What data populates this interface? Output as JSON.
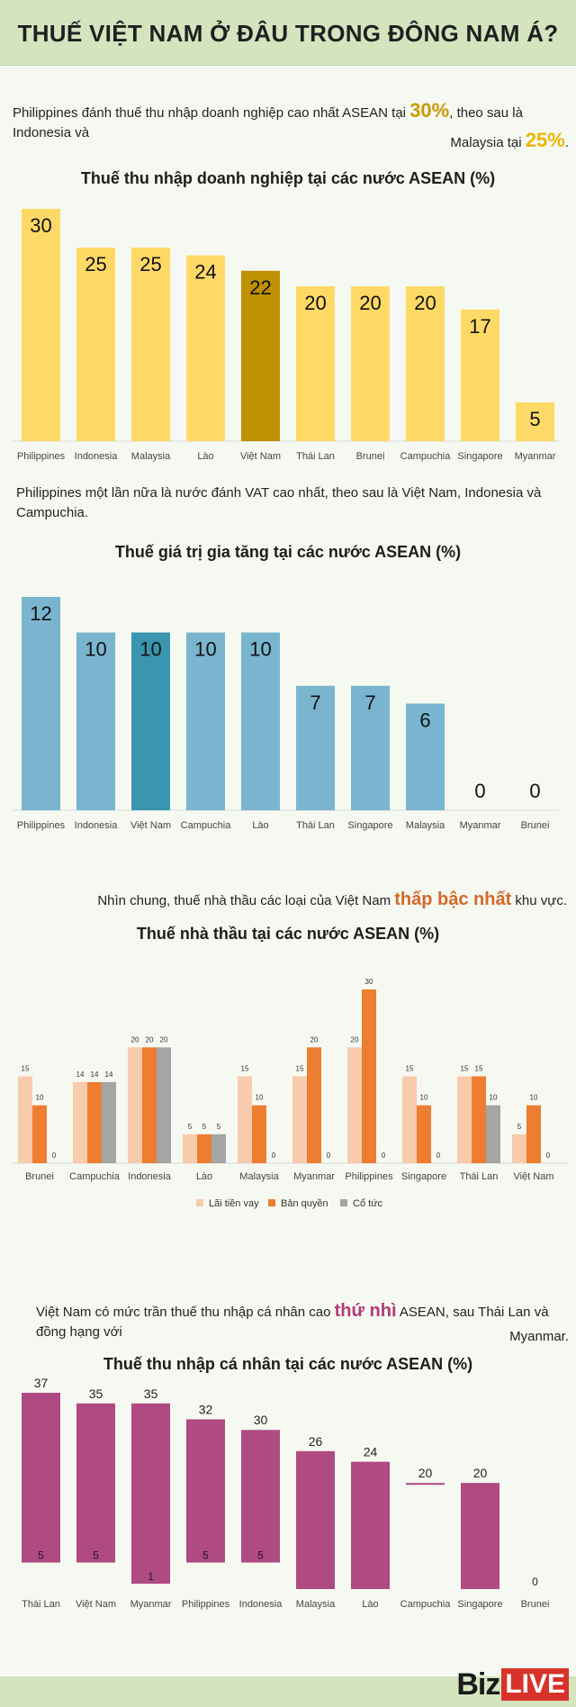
{
  "header": {
    "title": "THUẾ VIỆT NAM Ở ĐÂU TRONG ĐÔNG NAM Á?"
  },
  "intro1": {
    "line1_text": "Philippines đánh thuế thu nhập doanh nghiệp cao nhất ASEAN tại ",
    "line1_highlight": "30%",
    "line1_rest": ", theo sau là Indonesia và",
    "line2_text": "Malaysia tại ",
    "line2_highlight": "25%",
    "line2_rest": ".",
    "highlight_color": "#c99a00"
  },
  "intro2": {
    "text": "Philippines một lần nữa là nước đánh VAT cao nhất, theo sau là Việt Nam, Indonesia và Campuchia."
  },
  "intro3": {
    "before": "Nhìn chung, thuế nhà thầu các loại của Việt Nam ",
    "highlight": "thấp bậc nhất",
    "after": " khu vực.",
    "highlight_color": "#d2692a"
  },
  "intro4": {
    "before": "Việt Nam có mức trần thuế thu nhập cá nhân cao ",
    "highlight": "thứ nhì",
    "after": " ASEAN, sau Thái Lan và đồng hạng với",
    "line2": "Myanmar.",
    "highlight_color": "#b13a78"
  },
  "footer": {
    "logo_biz": "Biz",
    "logo_live": "LIVE"
  },
  "chart_data": [
    {
      "type": "bar",
      "title": "Thuế thu nhập doanh nghiệp tại các nước ASEAN (%)",
      "categories": [
        "Philippines",
        "Indonesia",
        "Malaysia",
        "Lào",
        "Việt Nam",
        "Thái Lan",
        "Brunei",
        "Campuchia",
        "Singapore",
        "Myanmar"
      ],
      "values": [
        30,
        25,
        25,
        24,
        22,
        20,
        20,
        20,
        17,
        5
      ],
      "color": "#ffd966",
      "highlight_index": 4,
      "highlight_color": "#bf9000",
      "ylim": [
        0,
        30
      ]
    },
    {
      "type": "bar",
      "title": "Thuế giá trị gia tăng tại các nước ASEAN (%)",
      "categories": [
        "Philippines",
        "Indonesia",
        "Việt Nam",
        "Campuchia",
        "Lào",
        "Thái Lan",
        "Singapore",
        "Malaysia",
        "Myanmar",
        "Brunei"
      ],
      "values": [
        12,
        10,
        10,
        10,
        10,
        7,
        7,
        6,
        0,
        0
      ],
      "color": "#79b5cf",
      "highlight_index": 2,
      "highlight_color": "#3a95b0",
      "ylim": [
        0,
        12
      ]
    },
    {
      "type": "bar",
      "title": "Thuế nhà thầu tại các nước ASEAN (%)",
      "categories": [
        "Brunei",
        "Campuchia",
        "Indonesia",
        "Lào",
        "Malaysia",
        "Myanmar",
        "Philippines",
        "Singapore",
        "Thái Lan",
        "Việt Nam"
      ],
      "series": [
        {
          "name": "Lãi tiền vay",
          "color": "#f8cbad",
          "values": [
            15,
            14,
            20,
            5,
            15,
            15,
            20,
            15,
            15,
            5
          ]
        },
        {
          "name": "Bản quyền",
          "color": "#ed7d31",
          "values": [
            10,
            14,
            20,
            5,
            10,
            20,
            30,
            10,
            15,
            10
          ]
        },
        {
          "name": "Cổ tức",
          "color": "#a5a5a5",
          "values": [
            0,
            14,
            20,
            5,
            0,
            0,
            0,
            0,
            10,
            0
          ]
        }
      ],
      "ylim": [
        0,
        30
      ],
      "legend": "bottom"
    },
    {
      "type": "bar",
      "title": "Thuế thu nhập cá nhân tại các nước ASEAN (%)",
      "categories": [
        "Thái Lan",
        "Việt Nam",
        "Myanmar",
        "Philippines",
        "Indonesia",
        "Malaysia",
        "Lào",
        "Campuchia",
        "Singapore",
        "Brunei"
      ],
      "max_values": [
        37,
        35,
        35,
        32,
        30,
        26,
        24,
        20,
        20,
        0
      ],
      "min_values": [
        5,
        5,
        1,
        5,
        5,
        0,
        0,
        20,
        0,
        0
      ],
      "min_labels": [
        "5",
        "5",
        "1",
        "5",
        "5",
        "",
        "",
        "",
        "",
        "0"
      ],
      "color": "#b04a82",
      "ylim": [
        0,
        37
      ]
    }
  ]
}
